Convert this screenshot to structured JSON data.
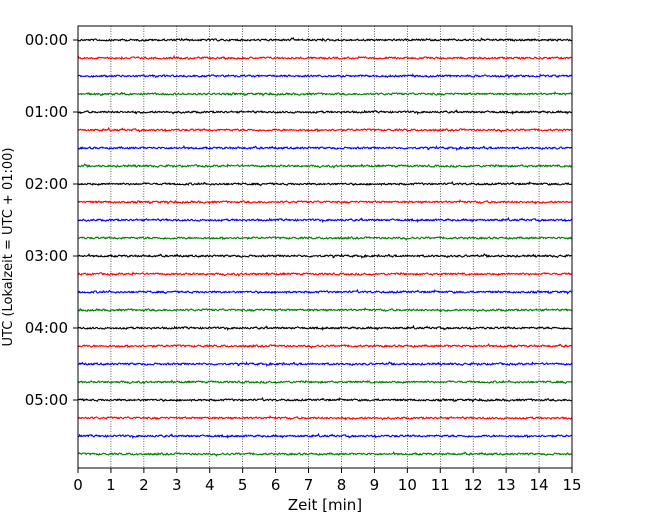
{
  "chart_data": {
    "type": "line",
    "title": "",
    "xlabel": "Zeit  [min]",
    "ylabel": "UTC (Lokalzeit = UTC + 01:00)",
    "xlim": [
      0,
      15
    ],
    "x_ticks": [
      "0",
      "1",
      "2",
      "3",
      "4",
      "5",
      "6",
      "7",
      "8",
      "9",
      "10",
      "11",
      "12",
      "13",
      "14",
      "15"
    ],
    "y_tick_labels": [
      "00:00",
      "01:00",
      "02:00",
      "03:00",
      "04:00",
      "05:00"
    ],
    "grid": "vertical dotted lines at each minute",
    "trace_interval_minutes": 15,
    "trace_start_times": [
      "00:00",
      "00:15",
      "00:30",
      "00:45",
      "01:00",
      "01:15",
      "01:30",
      "01:45",
      "02:00",
      "02:15",
      "02:30",
      "02:45",
      "03:00",
      "03:15",
      "03:30",
      "03:45",
      "04:00",
      "04:15",
      "04:30",
      "04:45",
      "05:00",
      "05:15",
      "05:30",
      "05:45"
    ],
    "color_cycle": [
      "#000000",
      "#ff0000",
      "#0000ff",
      "#008000"
    ]
  }
}
